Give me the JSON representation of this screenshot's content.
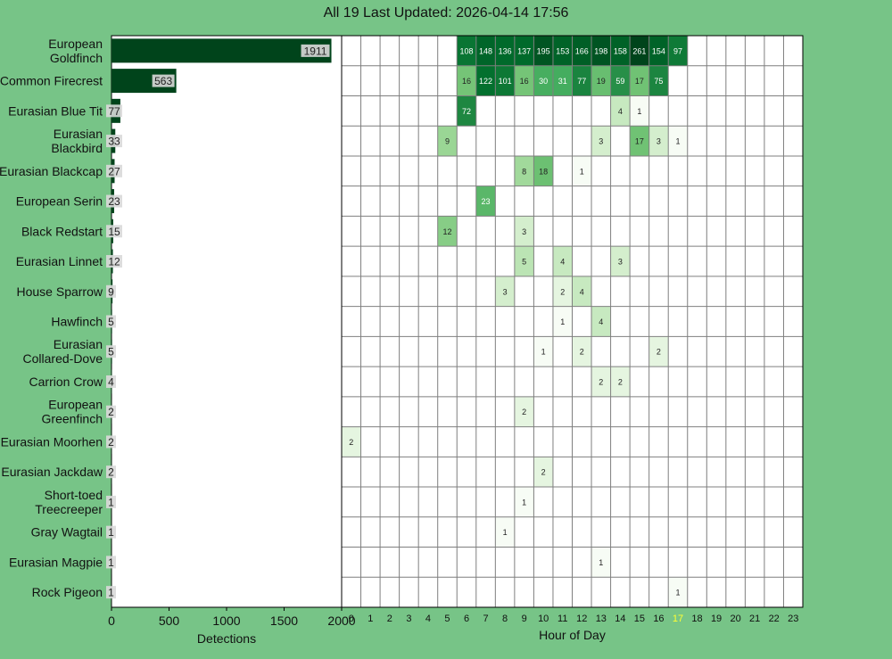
{
  "title": "All 19 Last Updated: 2026-04-14 17:56",
  "colors": {
    "background": "#77c487",
    "bar": "#00441b",
    "bar_label_bg": "#d9d9d9",
    "grid": "#7f7f7f",
    "current_hour": "#ffff33"
  },
  "chart_data": [
    {
      "type": "bar",
      "orientation": "horizontal",
      "categories": [
        "European Goldfinch",
        "Common Firecrest",
        "Eurasian Blue Tit",
        "Eurasian Blackbird",
        "Eurasian Blackcap",
        "European Serin",
        "Black Redstart",
        "Eurasian Linnet",
        "House Sparrow",
        "Hawfinch",
        "Eurasian Collared-Dove",
        "Carrion Crow",
        "European Greenfinch",
        "Eurasian Moorhen",
        "Eurasian Jackdaw",
        "Short-toed Treecreeper",
        "Gray Wagtail",
        "Eurasian Magpie",
        "Rock Pigeon"
      ],
      "category_lines": [
        [
          "European",
          "Goldfinch"
        ],
        [
          "Common Firecrest"
        ],
        [
          "Eurasian Blue Tit"
        ],
        [
          "Eurasian",
          "Blackbird"
        ],
        [
          "Eurasian Blackcap"
        ],
        [
          "European Serin"
        ],
        [
          "Black Redstart"
        ],
        [
          "Eurasian Linnet"
        ],
        [
          "House Sparrow"
        ],
        [
          "Hawfinch"
        ],
        [
          "Eurasian",
          "Collared-Dove"
        ],
        [
          "Carrion Crow"
        ],
        [
          "European",
          "Greenfinch"
        ],
        [
          "Eurasian Moorhen"
        ],
        [
          "Eurasian Jackdaw"
        ],
        [
          "Short-toed",
          "Treecreeper"
        ],
        [
          "Gray Wagtail"
        ],
        [
          "Eurasian Magpie"
        ],
        [
          "Rock Pigeon"
        ]
      ],
      "values": [
        1911,
        563,
        77,
        33,
        27,
        23,
        15,
        12,
        9,
        5,
        5,
        4,
        2,
        2,
        2,
        1,
        1,
        1,
        1
      ],
      "xlabel": "Detections",
      "xlim": [
        0,
        2000
      ],
      "xticks": [
        0,
        500,
        1000,
        1500,
        2000
      ],
      "data_labels": true
    },
    {
      "type": "heatmap",
      "xlabel": "Hour of Day",
      "hours": [
        0,
        1,
        2,
        3,
        4,
        5,
        6,
        7,
        8,
        9,
        10,
        11,
        12,
        13,
        14,
        15,
        16,
        17,
        18,
        19,
        20,
        21,
        22,
        23
      ],
      "highlight_hour": 17,
      "grid": true,
      "rows": [
        [
          0,
          0,
          0,
          0,
          0,
          0,
          108,
          148,
          136,
          137,
          195,
          153,
          166,
          198,
          158,
          261,
          154,
          97,
          0,
          0,
          0,
          0,
          0,
          0
        ],
        [
          0,
          0,
          0,
          0,
          0,
          0,
          16,
          122,
          101,
          16,
          30,
          31,
          77,
          19,
          59,
          17,
          75,
          0,
          0,
          0,
          0,
          0,
          0,
          0
        ],
        [
          0,
          0,
          0,
          0,
          0,
          0,
          72,
          0,
          0,
          0,
          0,
          0,
          0,
          0,
          4,
          1,
          0,
          0,
          0,
          0,
          0,
          0,
          0,
          0
        ],
        [
          0,
          0,
          0,
          0,
          0,
          9,
          0,
          0,
          0,
          0,
          0,
          0,
          0,
          3,
          0,
          17,
          3,
          1,
          0,
          0,
          0,
          0,
          0,
          0
        ],
        [
          0,
          0,
          0,
          0,
          0,
          0,
          0,
          0,
          0,
          8,
          18,
          0,
          1,
          0,
          0,
          0,
          0,
          0,
          0,
          0,
          0,
          0,
          0,
          0
        ],
        [
          0,
          0,
          0,
          0,
          0,
          0,
          0,
          23,
          0,
          0,
          0,
          0,
          0,
          0,
          0,
          0,
          0,
          0,
          0,
          0,
          0,
          0,
          0,
          0
        ],
        [
          0,
          0,
          0,
          0,
          0,
          12,
          0,
          0,
          0,
          3,
          0,
          0,
          0,
          0,
          0,
          0,
          0,
          0,
          0,
          0,
          0,
          0,
          0,
          0
        ],
        [
          0,
          0,
          0,
          0,
          0,
          0,
          0,
          0,
          0,
          5,
          0,
          4,
          0,
          0,
          3,
          0,
          0,
          0,
          0,
          0,
          0,
          0,
          0,
          0
        ],
        [
          0,
          0,
          0,
          0,
          0,
          0,
          0,
          0,
          3,
          0,
          0,
          2,
          4,
          0,
          0,
          0,
          0,
          0,
          0,
          0,
          0,
          0,
          0,
          0
        ],
        [
          0,
          0,
          0,
          0,
          0,
          0,
          0,
          0,
          0,
          0,
          0,
          1,
          0,
          4,
          0,
          0,
          0,
          0,
          0,
          0,
          0,
          0,
          0,
          0
        ],
        [
          0,
          0,
          0,
          0,
          0,
          0,
          0,
          0,
          0,
          0,
          1,
          0,
          2,
          0,
          0,
          0,
          2,
          0,
          0,
          0,
          0,
          0,
          0,
          0
        ],
        [
          0,
          0,
          0,
          0,
          0,
          0,
          0,
          0,
          0,
          0,
          0,
          0,
          0,
          2,
          2,
          0,
          0,
          0,
          0,
          0,
          0,
          0,
          0,
          0
        ],
        [
          0,
          0,
          0,
          0,
          0,
          0,
          0,
          0,
          0,
          2,
          0,
          0,
          0,
          0,
          0,
          0,
          0,
          0,
          0,
          0,
          0,
          0,
          0,
          0
        ],
        [
          2,
          0,
          0,
          0,
          0,
          0,
          0,
          0,
          0,
          0,
          0,
          0,
          0,
          0,
          0,
          0,
          0,
          0,
          0,
          0,
          0,
          0,
          0,
          0
        ],
        [
          0,
          0,
          0,
          0,
          0,
          0,
          0,
          0,
          0,
          0,
          2,
          0,
          0,
          0,
          0,
          0,
          0,
          0,
          0,
          0,
          0,
          0,
          0,
          0
        ],
        [
          0,
          0,
          0,
          0,
          0,
          0,
          0,
          0,
          0,
          1,
          0,
          0,
          0,
          0,
          0,
          0,
          0,
          0,
          0,
          0,
          0,
          0,
          0,
          0
        ],
        [
          0,
          0,
          0,
          0,
          0,
          0,
          0,
          0,
          1,
          0,
          0,
          0,
          0,
          0,
          0,
          0,
          0,
          0,
          0,
          0,
          0,
          0,
          0,
          0
        ],
        [
          0,
          0,
          0,
          0,
          0,
          0,
          0,
          0,
          0,
          0,
          0,
          0,
          0,
          1,
          0,
          0,
          0,
          0,
          0,
          0,
          0,
          0,
          0,
          0
        ],
        [
          0,
          0,
          0,
          0,
          0,
          0,
          0,
          0,
          0,
          0,
          0,
          0,
          0,
          0,
          0,
          0,
          0,
          1,
          0,
          0,
          0,
          0,
          0,
          0
        ]
      ]
    }
  ]
}
